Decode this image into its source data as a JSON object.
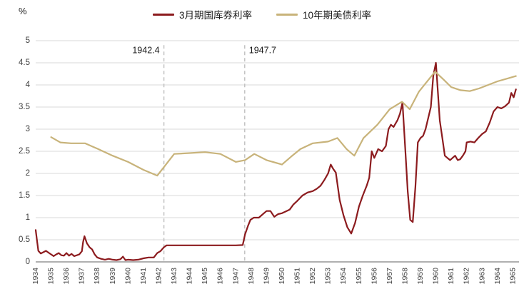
{
  "chart_data": {
    "type": "line",
    "title": "",
    "ylabel": "%",
    "xlabel": "",
    "ylim": [
      0,
      5
    ],
    "xlim": [
      1934,
      1965.4
    ],
    "grid": true,
    "legend_position": "top",
    "yticks": [
      0,
      0.5,
      1,
      1.5,
      2,
      2.5,
      3,
      3.5,
      4,
      4.5,
      5
    ],
    "xticks": [
      1934,
      1935,
      1936,
      1937,
      1938,
      1939,
      1940,
      1941,
      1942,
      1943,
      1944,
      1945,
      1946,
      1947,
      1948,
      1949,
      1950,
      1951,
      1952,
      1953,
      1954,
      1955,
      1956,
      1957,
      1958,
      1959,
      1960,
      1961,
      1962,
      1963,
      1964,
      1965
    ],
    "annotations": [
      {
        "x": 1942.33,
        "label": "1942.4",
        "side": "left"
      },
      {
        "x": 1947.58,
        "label": "1947.7",
        "side": "right"
      }
    ],
    "colors": {
      "grid": "#d9d9d9",
      "axis": "#808080",
      "tick_text": "#404040",
      "annotation_line": "#bfbfbf",
      "annotation_text": "#1a1a1a"
    },
    "series": [
      {
        "name": "3月期国库券利率",
        "color": "#8C1B1E",
        "width": 2.2,
        "points": [
          [
            1934.0,
            0.72
          ],
          [
            1934.08,
            0.5
          ],
          [
            1934.17,
            0.25
          ],
          [
            1934.33,
            0.19
          ],
          [
            1934.5,
            0.22
          ],
          [
            1934.67,
            0.25
          ],
          [
            1934.83,
            0.21
          ],
          [
            1935.0,
            0.17
          ],
          [
            1935.17,
            0.13
          ],
          [
            1935.33,
            0.17
          ],
          [
            1935.5,
            0.2
          ],
          [
            1935.67,
            0.15
          ],
          [
            1935.83,
            0.14
          ],
          [
            1936.0,
            0.2
          ],
          [
            1936.17,
            0.14
          ],
          [
            1936.33,
            0.18
          ],
          [
            1936.5,
            0.13
          ],
          [
            1936.67,
            0.15
          ],
          [
            1936.83,
            0.17
          ],
          [
            1937.0,
            0.24
          ],
          [
            1937.08,
            0.45
          ],
          [
            1937.17,
            0.58
          ],
          [
            1937.33,
            0.42
          ],
          [
            1937.5,
            0.33
          ],
          [
            1937.67,
            0.28
          ],
          [
            1937.83,
            0.17
          ],
          [
            1938.0,
            0.1
          ],
          [
            1938.25,
            0.07
          ],
          [
            1938.5,
            0.05
          ],
          [
            1938.75,
            0.07
          ],
          [
            1939.0,
            0.05
          ],
          [
            1939.25,
            0.04
          ],
          [
            1939.5,
            0.06
          ],
          [
            1939.67,
            0.12
          ],
          [
            1939.83,
            0.04
          ],
          [
            1940.0,
            0.05
          ],
          [
            1940.33,
            0.04
          ],
          [
            1940.67,
            0.05
          ],
          [
            1941.0,
            0.08
          ],
          [
            1941.33,
            0.1
          ],
          [
            1941.67,
            0.1
          ],
          [
            1941.9,
            0.2
          ],
          [
            1942.1,
            0.24
          ],
          [
            1942.33,
            0.33
          ],
          [
            1942.5,
            0.375
          ],
          [
            1943.0,
            0.375
          ],
          [
            1944.0,
            0.375
          ],
          [
            1945.0,
            0.375
          ],
          [
            1946.0,
            0.375
          ],
          [
            1947.0,
            0.375
          ],
          [
            1947.45,
            0.38
          ],
          [
            1947.6,
            0.62
          ],
          [
            1947.8,
            0.82
          ],
          [
            1947.95,
            0.95
          ],
          [
            1948.17,
            1.0
          ],
          [
            1948.5,
            1.0
          ],
          [
            1948.83,
            1.1
          ],
          [
            1949.0,
            1.15
          ],
          [
            1949.25,
            1.15
          ],
          [
            1949.5,
            1.02
          ],
          [
            1949.75,
            1.08
          ],
          [
            1950.0,
            1.1
          ],
          [
            1950.25,
            1.14
          ],
          [
            1950.5,
            1.18
          ],
          [
            1950.75,
            1.3
          ],
          [
            1951.0,
            1.38
          ],
          [
            1951.33,
            1.5
          ],
          [
            1951.67,
            1.57
          ],
          [
            1952.0,
            1.6
          ],
          [
            1952.25,
            1.65
          ],
          [
            1952.5,
            1.72
          ],
          [
            1952.75,
            1.85
          ],
          [
            1953.0,
            2.0
          ],
          [
            1953.17,
            2.2
          ],
          [
            1953.33,
            2.1
          ],
          [
            1953.5,
            2.02
          ],
          [
            1953.75,
            1.4
          ],
          [
            1954.0,
            1.05
          ],
          [
            1954.25,
            0.78
          ],
          [
            1954.5,
            0.64
          ],
          [
            1954.75,
            0.88
          ],
          [
            1955.0,
            1.25
          ],
          [
            1955.25,
            1.5
          ],
          [
            1955.5,
            1.72
          ],
          [
            1955.67,
            1.9
          ],
          [
            1955.83,
            2.5
          ],
          [
            1956.0,
            2.35
          ],
          [
            1956.25,
            2.55
          ],
          [
            1956.5,
            2.5
          ],
          [
            1956.75,
            2.62
          ],
          [
            1956.92,
            3.0
          ],
          [
            1957.08,
            3.1
          ],
          [
            1957.25,
            3.05
          ],
          [
            1957.5,
            3.2
          ],
          [
            1957.67,
            3.35
          ],
          [
            1957.83,
            3.6
          ],
          [
            1958.0,
            2.6
          ],
          [
            1958.17,
            1.6
          ],
          [
            1958.33,
            0.95
          ],
          [
            1958.5,
            0.9
          ],
          [
            1958.67,
            1.7
          ],
          [
            1958.83,
            2.7
          ],
          [
            1959.0,
            2.8
          ],
          [
            1959.17,
            2.85
          ],
          [
            1959.33,
            3.0
          ],
          [
            1959.5,
            3.25
          ],
          [
            1959.67,
            3.5
          ],
          [
            1959.83,
            4.2
          ],
          [
            1960.0,
            4.5
          ],
          [
            1960.08,
            4.1
          ],
          [
            1960.25,
            3.2
          ],
          [
            1960.42,
            2.8
          ],
          [
            1960.58,
            2.4
          ],
          [
            1960.75,
            2.35
          ],
          [
            1960.92,
            2.3
          ],
          [
            1961.08,
            2.35
          ],
          [
            1961.25,
            2.4
          ],
          [
            1961.42,
            2.3
          ],
          [
            1961.58,
            2.32
          ],
          [
            1961.75,
            2.4
          ],
          [
            1961.92,
            2.5
          ],
          [
            1962.0,
            2.7
          ],
          [
            1962.25,
            2.72
          ],
          [
            1962.5,
            2.7
          ],
          [
            1962.75,
            2.8
          ],
          [
            1963.0,
            2.89
          ],
          [
            1963.25,
            2.95
          ],
          [
            1963.5,
            3.15
          ],
          [
            1963.75,
            3.4
          ],
          [
            1964.0,
            3.5
          ],
          [
            1964.25,
            3.47
          ],
          [
            1964.5,
            3.52
          ],
          [
            1964.75,
            3.6
          ],
          [
            1964.9,
            3.82
          ],
          [
            1965.05,
            3.72
          ],
          [
            1965.2,
            3.9
          ]
        ]
      },
      {
        "name": "10年期美债利率",
        "color": "#C8B37A",
        "width": 2.2,
        "points": [
          [
            1935.0,
            2.82
          ],
          [
            1935.6,
            2.7
          ],
          [
            1936.3,
            2.68
          ],
          [
            1937.2,
            2.68
          ],
          [
            1938.0,
            2.56
          ],
          [
            1939.0,
            2.4
          ],
          [
            1940.0,
            2.26
          ],
          [
            1941.0,
            2.08
          ],
          [
            1941.9,
            1.95
          ],
          [
            1942.5,
            2.22
          ],
          [
            1943.0,
            2.44
          ],
          [
            1944.0,
            2.46
          ],
          [
            1945.0,
            2.48
          ],
          [
            1946.0,
            2.44
          ],
          [
            1947.0,
            2.26
          ],
          [
            1947.6,
            2.3
          ],
          [
            1948.2,
            2.44
          ],
          [
            1949.0,
            2.3
          ],
          [
            1950.0,
            2.2
          ],
          [
            1950.6,
            2.38
          ],
          [
            1951.2,
            2.55
          ],
          [
            1952.0,
            2.68
          ],
          [
            1953.0,
            2.72
          ],
          [
            1953.6,
            2.8
          ],
          [
            1954.2,
            2.55
          ],
          [
            1954.7,
            2.4
          ],
          [
            1955.3,
            2.8
          ],
          [
            1956.2,
            3.1
          ],
          [
            1957.0,
            3.45
          ],
          [
            1957.8,
            3.62
          ],
          [
            1958.3,
            3.45
          ],
          [
            1958.9,
            3.85
          ],
          [
            1959.6,
            4.15
          ],
          [
            1959.95,
            4.3
          ],
          [
            1960.5,
            4.12
          ],
          [
            1961.0,
            3.95
          ],
          [
            1961.6,
            3.88
          ],
          [
            1962.2,
            3.86
          ],
          [
            1962.8,
            3.92
          ],
          [
            1963.4,
            4.0
          ],
          [
            1964.0,
            4.08
          ],
          [
            1964.6,
            4.14
          ],
          [
            1965.2,
            4.2
          ]
        ]
      }
    ]
  }
}
